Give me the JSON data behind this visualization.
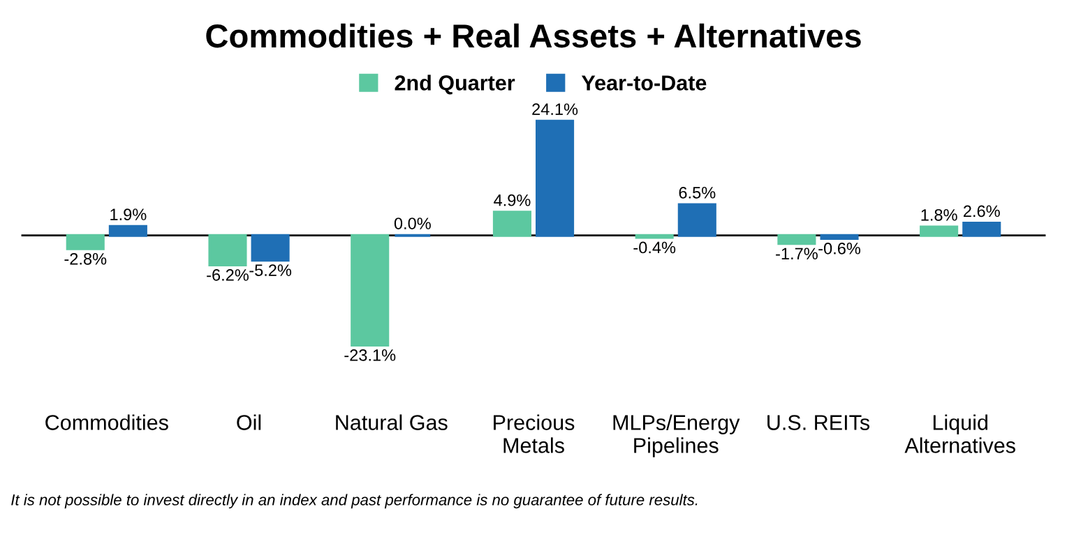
{
  "chart_data": {
    "type": "bar",
    "title": "Commodities + Real Assets + Alternatives",
    "categories": [
      "Commodities",
      "Oil",
      "Natural Gas",
      "Precious\nMetals",
      "MLPs/Energy\nPipelines",
      "U.S. REITs",
      "Liquid\nAlternatives"
    ],
    "series": [
      {
        "name": "2nd Quarter",
        "color": "#5cc8a0",
        "values": [
          -2.8,
          -6.2,
          -23.1,
          4.9,
          -0.4,
          -1.7,
          1.8
        ],
        "value_labels": [
          "-2.8%",
          "-6.2%",
          "-23.1%",
          "4.9%",
          "-0.4%",
          "-1.7%",
          "1.8%"
        ]
      },
      {
        "name": "Year-to-Date",
        "color": "#1f6fb5",
        "values": [
          1.9,
          -5.2,
          0.0,
          24.1,
          6.5,
          -0.6,
          2.6
        ],
        "value_labels": [
          "1.9%",
          "-5.2%",
          "0.0%",
          "24.1%",
          "6.5%",
          "-0.6%",
          "2.6%"
        ]
      }
    ],
    "legend": "top",
    "annotations": [
      "It is not possible to invest directly in an index and past performance is no guarantee of future results."
    ]
  }
}
